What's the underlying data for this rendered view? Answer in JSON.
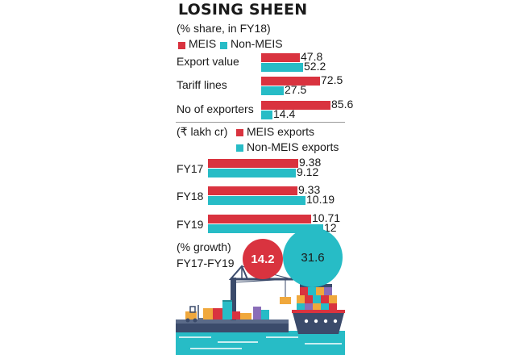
{
  "title": "LOSING SHEEN",
  "colors": {
    "meis": "#d9333f",
    "non_meis": "#27bcc6",
    "divider": "#9a9a9a",
    "ink": "#1a1a1a"
  },
  "section1": {
    "subtitle": "(% share, in FY18)",
    "legend": {
      "meis": "MEIS",
      "non_meis": "Non-MEIS"
    }
  },
  "section2": {
    "unit": "(₹ lakh cr)",
    "legend": {
      "meis": "MEIS exports",
      "non_meis": "Non-MEIS exports"
    }
  },
  "growth": {
    "label": "(% growth)",
    "period": "FY17-FY19"
  },
  "chart_data": [
    {
      "type": "bar",
      "orientation": "horizontal",
      "title": "(% share, in FY18)",
      "categories": [
        "Export value",
        "Tariff lines",
        "No of exporters"
      ],
      "series": [
        {
          "name": "MEIS",
          "values": [
            47.8,
            72.5,
            85.6
          ],
          "labels": [
            "47.8",
            "72.5",
            "85.6"
          ]
        },
        {
          "name": "Non-MEIS",
          "values": [
            52.2,
            27.5,
            14.4
          ],
          "labels": [
            "52.2",
            "27.5",
            "14.4"
          ]
        }
      ]
    },
    {
      "type": "bar",
      "orientation": "horizontal",
      "title": "(₹ lakh cr)",
      "categories": [
        "FY17",
        "FY18",
        "FY19"
      ],
      "series": [
        {
          "name": "MEIS exports",
          "values": [
            9.38,
            9.33,
            10.71
          ],
          "labels": [
            "9.38",
            "9.33",
            "10.71"
          ]
        },
        {
          "name": "Non-MEIS exports",
          "values": [
            9.12,
            10.19,
            12
          ],
          "labels": [
            "9.12",
            "10.19",
            "12"
          ]
        }
      ]
    },
    {
      "type": "bubble",
      "title": "(% growth) FY17-FY19",
      "series": [
        {
          "name": "MEIS exports",
          "value": 14.2,
          "label": "14.2"
        },
        {
          "name": "Non-MEIS exports",
          "value": 31.6,
          "label": "31.6"
        }
      ]
    }
  ]
}
